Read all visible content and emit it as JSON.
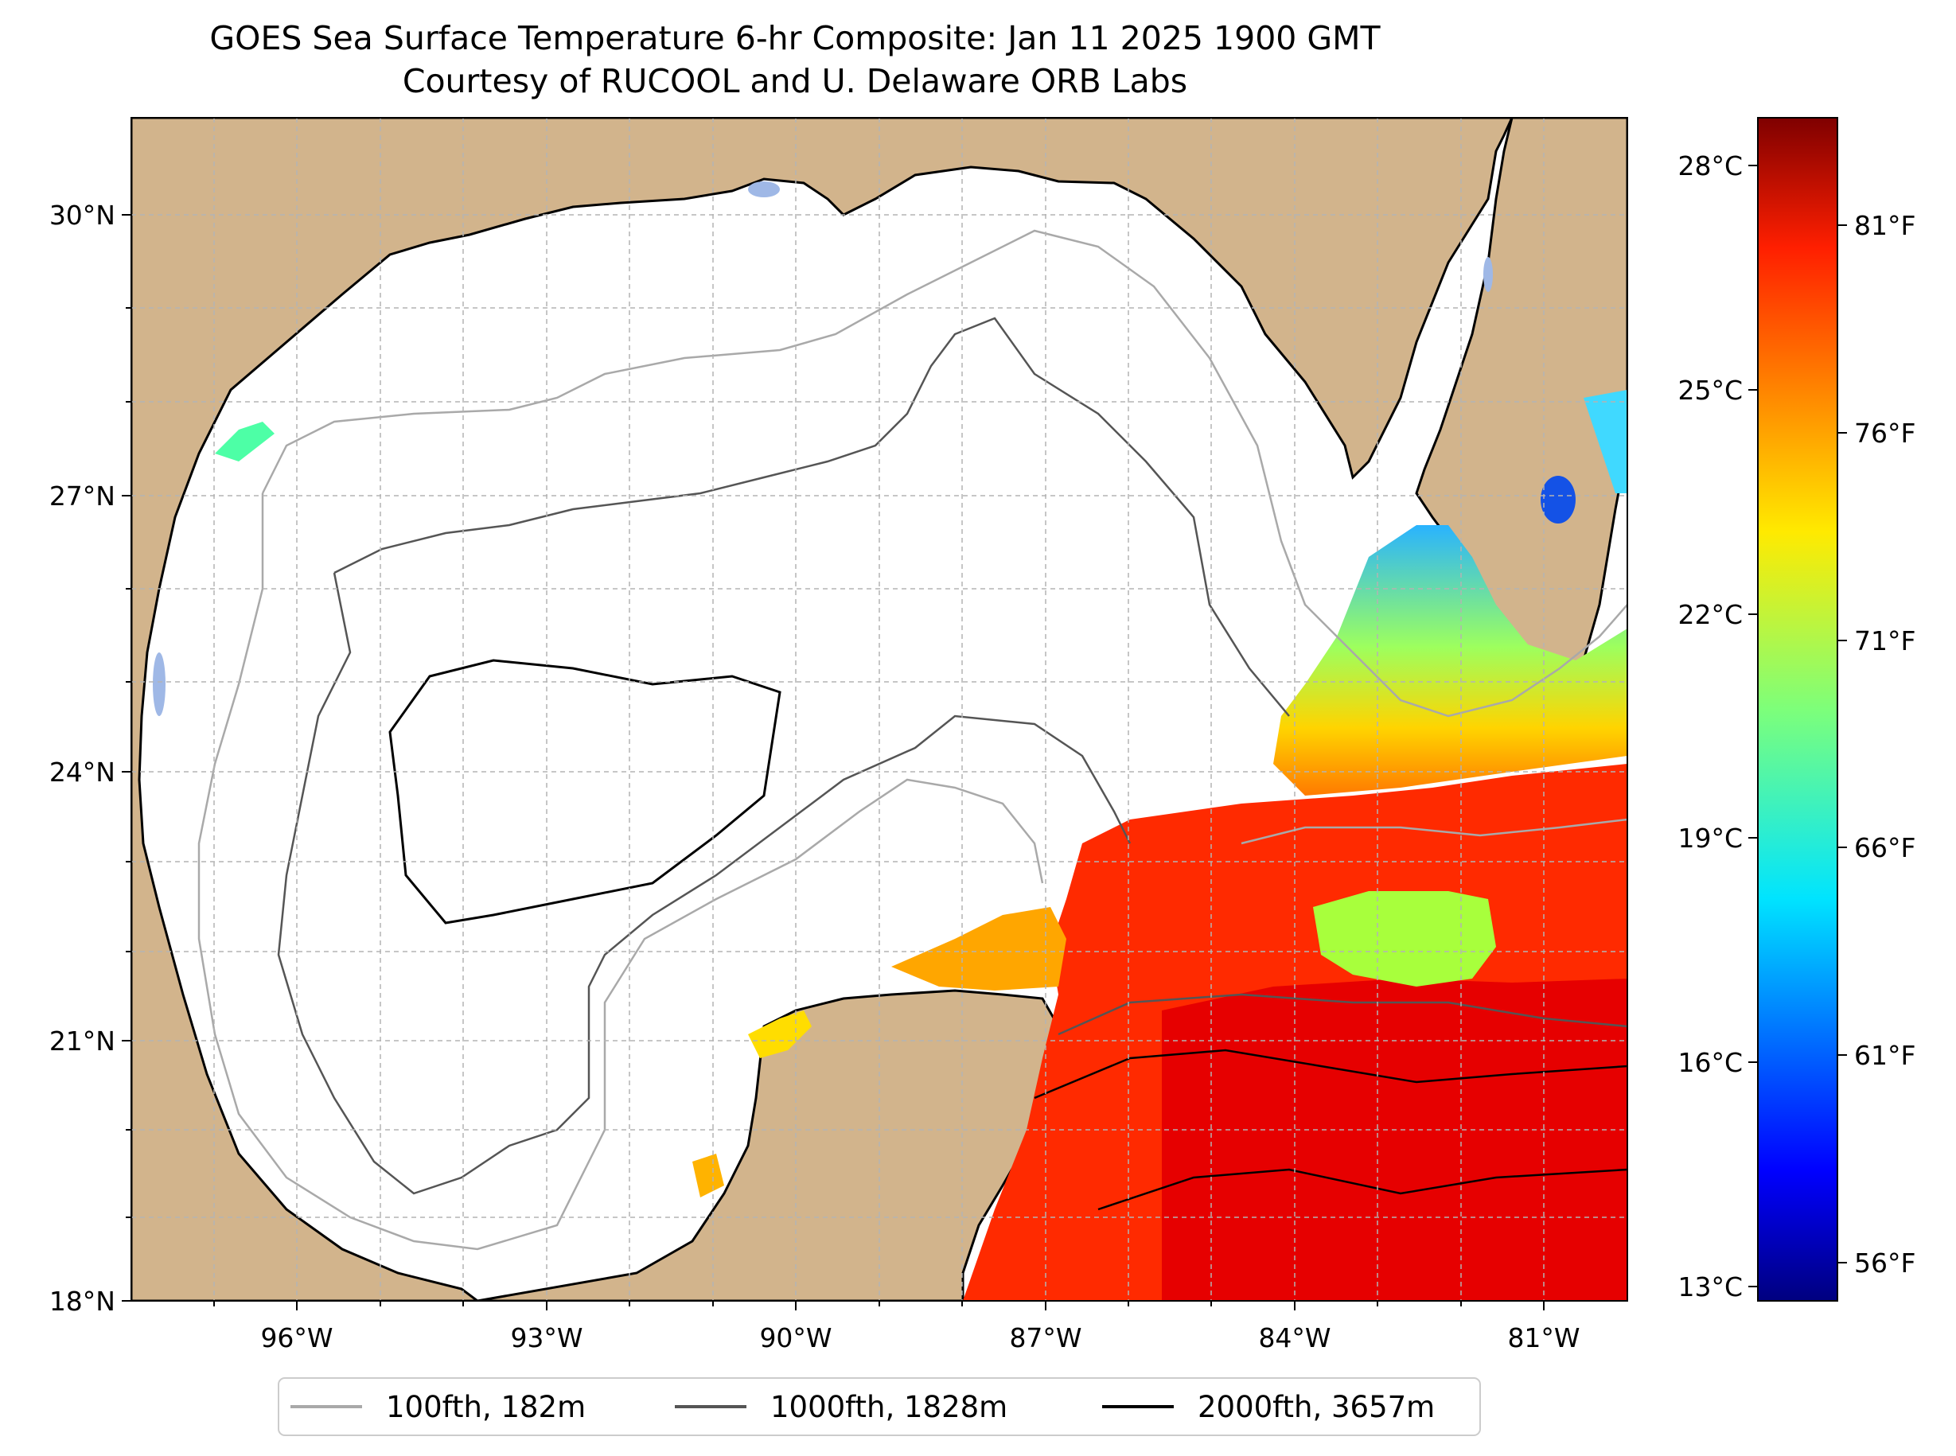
{
  "title": "GOES Sea Surface Temperature 6-hr Composite: Jan 11 2025 1900 GMT",
  "subtitle": "Courtesy of RUCOOL and U. Delaware ORB Labs",
  "map": {
    "lat_labels": [
      "30°N",
      "27°N",
      "24°N",
      "21°N",
      "18°N"
    ],
    "lon_labels": [
      "96°W",
      "93°W",
      "90°W",
      "87°W",
      "84°W",
      "81°W"
    ],
    "extent": {
      "lon": [
        -98,
        -80
      ],
      "lat": [
        18,
        31
      ]
    },
    "land_color": "#d2b48c",
    "lake_color": "#9fb8e6",
    "grid": true
  },
  "colorbar": {
    "celsius_labels": [
      "28°C",
      "25°C",
      "22°C",
      "19°C",
      "16°C",
      "13°C"
    ],
    "fahrenheit_labels": [
      "81°F",
      "76°F",
      "71°F",
      "66°F",
      "61°F",
      "56°F"
    ],
    "colormap": "jet",
    "range_c": [
      12.9,
      28.6
    ]
  },
  "legend": {
    "items": [
      {
        "label": "100fth, 182m",
        "color": "#a9a9a9"
      },
      {
        "label": "1000fth, 1828m",
        "color": "#555555"
      },
      {
        "label": "2000fth, 3657m",
        "color": "#000000"
      }
    ]
  }
}
